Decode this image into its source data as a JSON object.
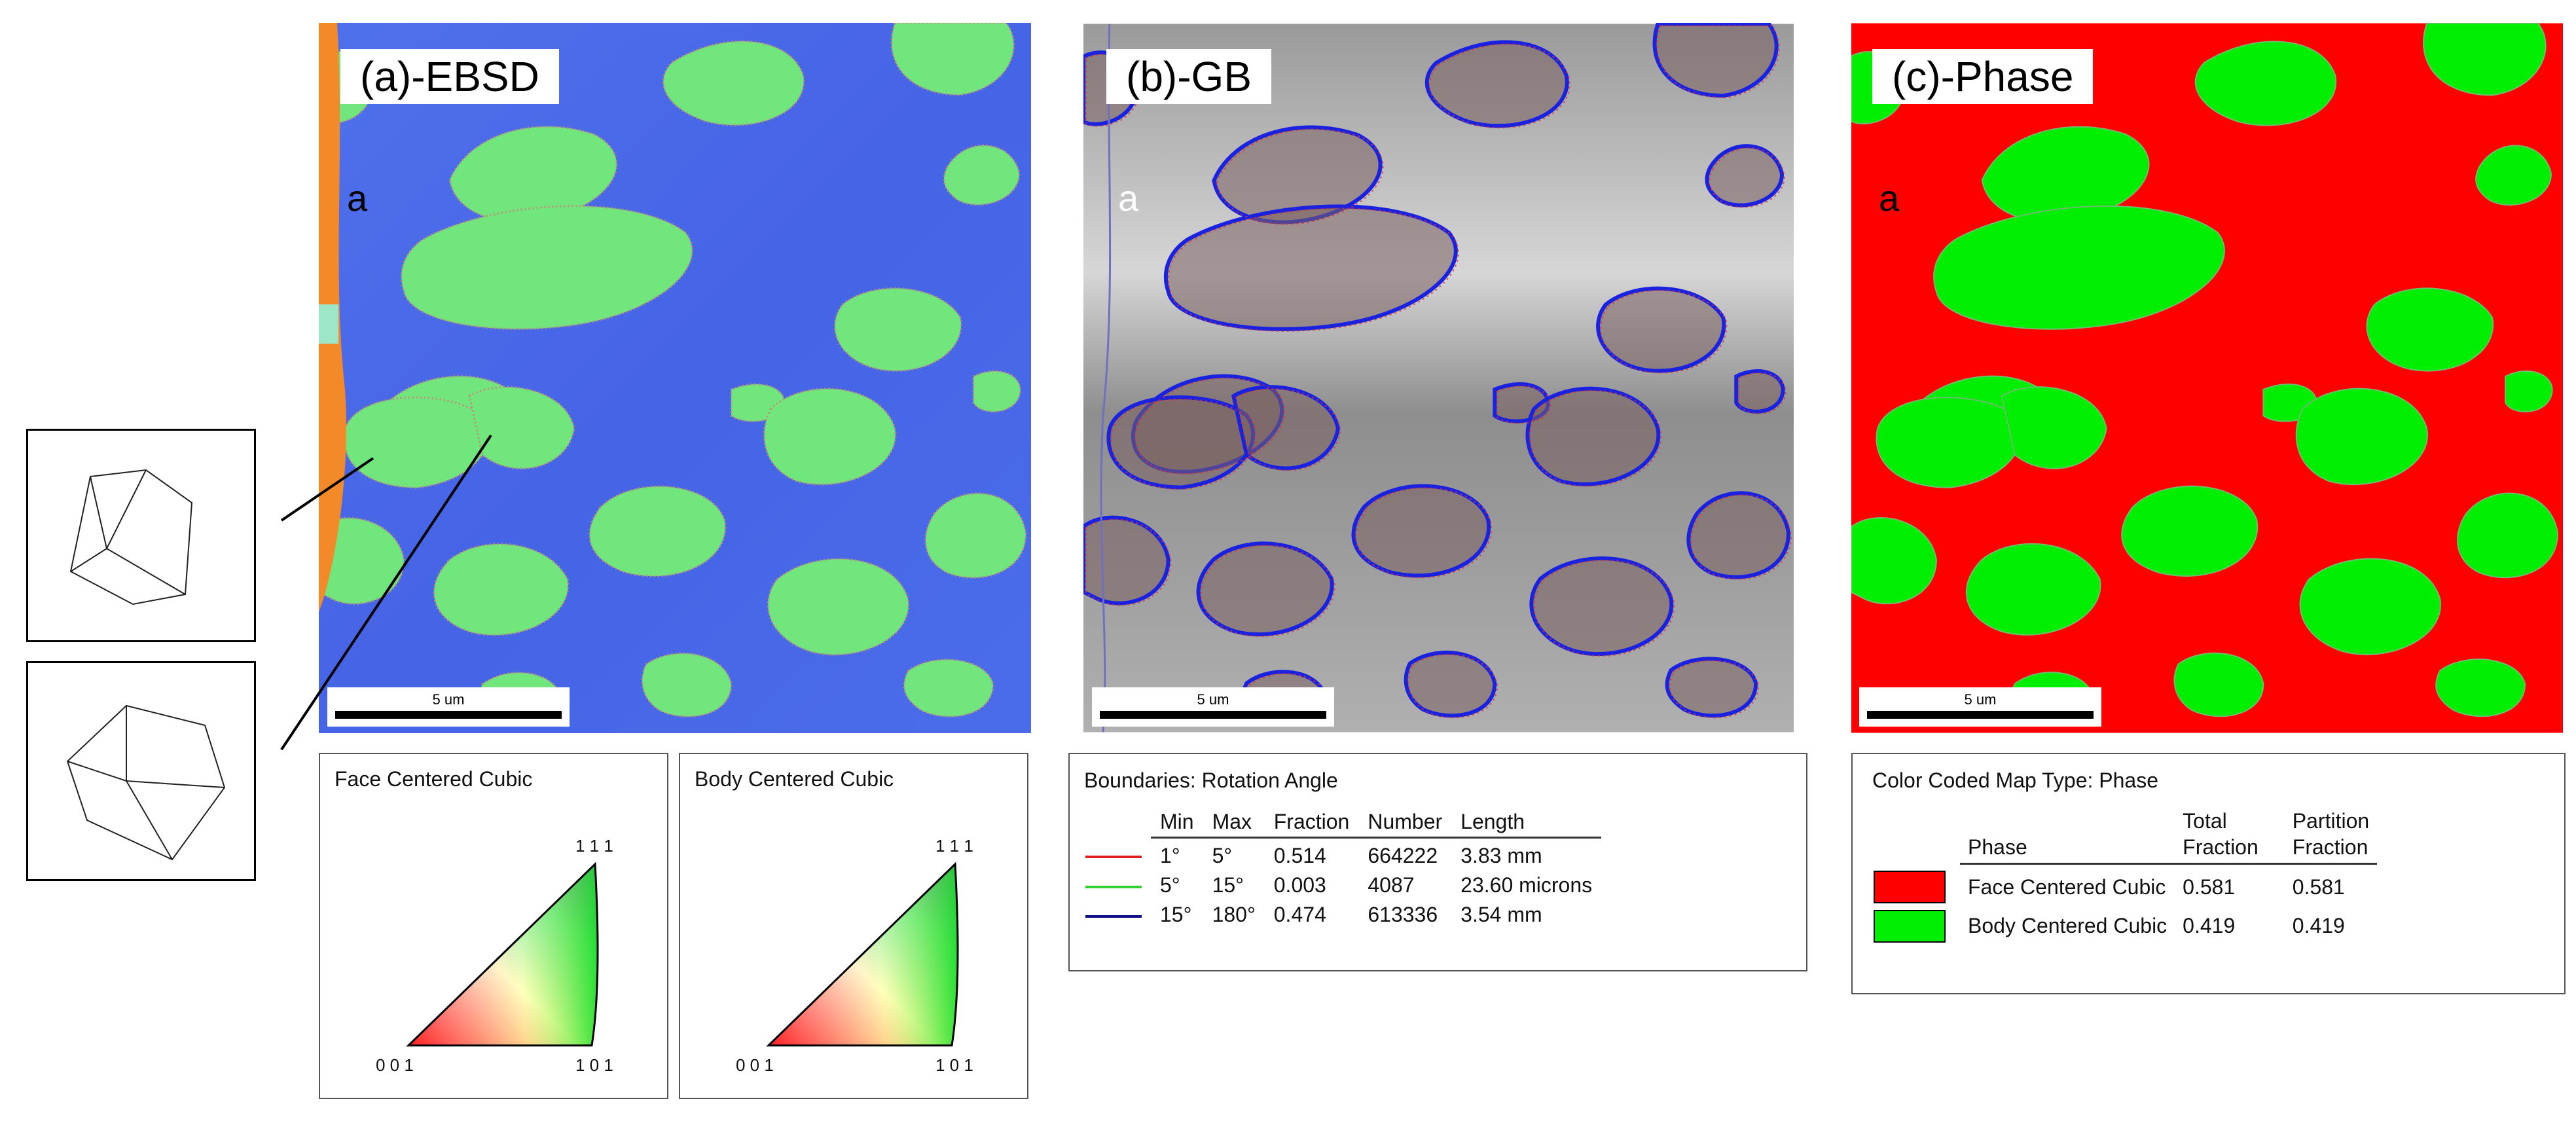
{
  "panels": {
    "a": {
      "label": "(a)-EBSD",
      "phase_marker": "a",
      "scale": "5 um"
    },
    "b": {
      "label": "(b)-GB",
      "phase_marker": "a",
      "scale": "5 um"
    },
    "c": {
      "label": "(c)-Phase",
      "phase_marker": "a",
      "scale": "5 um"
    }
  },
  "ipf": {
    "fcc_title": "Face Centered Cubic",
    "bcc_title": "Body Centered Cubic",
    "corner_001": "0 0 1",
    "corner_101": "1 0 1",
    "corner_111": "1 1 1"
  },
  "gb_legend": {
    "title": "Boundaries: Rotation Angle",
    "headers": [
      "Min",
      "Max",
      "Fraction",
      "Number",
      "Length"
    ],
    "rows": [
      {
        "color": "#e02020",
        "min": "1°",
        "max": "5°",
        "fraction": "0.514",
        "number": "664222",
        "length": "3.83 mm"
      },
      {
        "color": "#30d030",
        "min": "5°",
        "max": "15°",
        "fraction": "0.003",
        "number": "4087",
        "length": "23.60 microns"
      },
      {
        "color": "#10108a",
        "min": "15°",
        "max": "180°",
        "fraction": "0.474",
        "number": "613336",
        "length": "3.54 mm"
      }
    ]
  },
  "phase_legend": {
    "title": "Color Coded Map Type: Phase",
    "header_phase": "Phase",
    "header_total_1": "Total",
    "header_total_2": "Fraction",
    "header_part_1": "Partition",
    "header_part_2": "Fraction",
    "rows": [
      {
        "color": "#ff0000",
        "name": "Face Centered Cubic",
        "total": "0.581",
        "partition": "0.581"
      },
      {
        "color": "#00ee00",
        "name": "Body Centered Cubic",
        "total": "0.419",
        "partition": "0.419"
      }
    ]
  },
  "colors": {
    "ebsd_matrix": "#4a68e8",
    "ebsd_grain": "#6ee87a",
    "ebsd_edge": "#f28a2a",
    "gb_background": "#a8a8a8",
    "gb_boundary": "#1a22e0",
    "gb_lowangle": "#e03030",
    "phase_fcc": "#ff0000",
    "phase_bcc": "#00ee00"
  }
}
